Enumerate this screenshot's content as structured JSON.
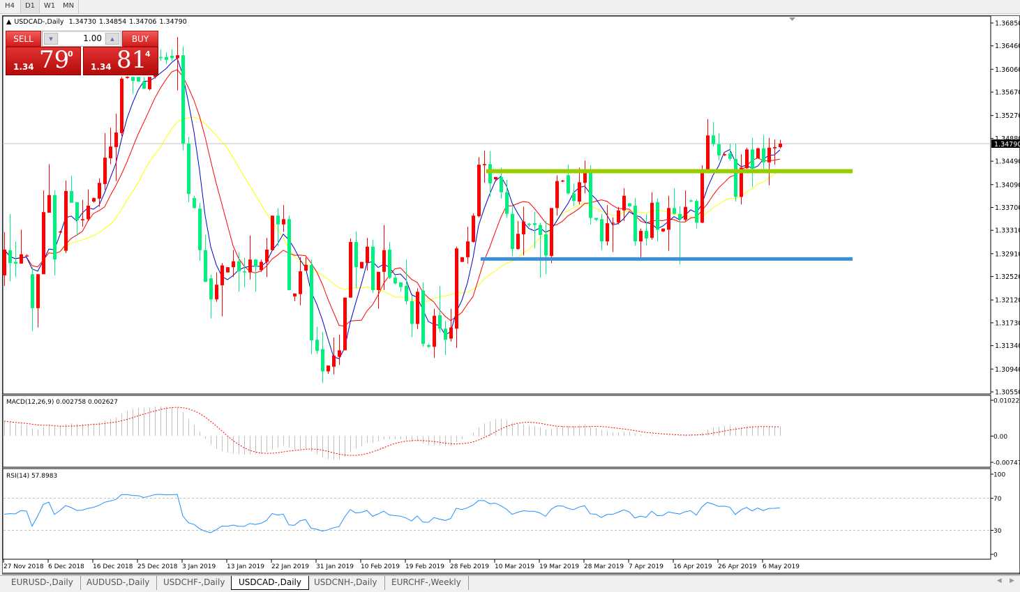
{
  "toolbar": {
    "timeframes": [
      "H4",
      "D1",
      "W1",
      "MN"
    ],
    "active": "D1"
  },
  "chart_header": {
    "symbol": "USDCAD-,Daily",
    "open": "1.34730",
    "high": "1.34854",
    "low": "1.34706",
    "close": "1.34790"
  },
  "trade_panel": {
    "sell_label": "SELL",
    "buy_label": "BUY",
    "lot": "1.00",
    "sell_price": {
      "big": "1.34",
      "main": "79",
      "sup": "0"
    },
    "buy_price": {
      "big": "1.34",
      "main": "81",
      "sup": "4"
    }
  },
  "colors": {
    "up": "#ff0000",
    "down": "#00f080",
    "ma_fast": "#0000cc",
    "ma_mid": "#ff0000",
    "ma_slow": "#ffff00",
    "support_line": "#3c8fd8",
    "resistance_line": "#99cc00",
    "macd_hist": "#c0c0c0",
    "macd_signal": "#ff0000",
    "rsi": "#1e90ff"
  },
  "chart_data": {
    "type": "candlestick",
    "symbol": "USDCAD-,Daily",
    "ylim": [
      1.3055,
      1.3685
    ],
    "price_ticks": [
      "1.36850",
      "1.36460",
      "1.36060",
      "1.35670",
      "1.35270",
      "1.34880",
      "1.34490",
      "1.34090",
      "1.33700",
      "1.33310",
      "1.32910",
      "1.32520",
      "1.32120",
      "1.31730",
      "1.31340",
      "1.30940",
      "1.30550"
    ],
    "current_price": "1.34790",
    "date_labels": [
      "27 Nov 2018",
      "6 Dec 2018",
      "16 Dec 2018",
      "25 Dec 2018",
      "3 Jan 2019",
      "13 Jan 2019",
      "22 Jan 2019",
      "31 Jan 2019",
      "10 Feb 2019",
      "19 Feb 2019",
      "28 Feb 2019",
      "10 Mar 2019",
      "19 Mar 2019",
      "28 Mar 2019",
      "7 Apr 2019",
      "16 Apr 2019",
      "26 Apr 2019",
      "6 May 2019"
    ],
    "horizontal_levels": [
      {
        "price": 1.3432,
        "color": "#99cc00"
      },
      {
        "price": 1.3282,
        "color": "#3c8fd8"
      }
    ],
    "candles_ohlc": [
      [
        1.3254,
        1.3328,
        1.3236,
        1.3298
      ],
      [
        1.3297,
        1.3359,
        1.3244,
        1.3275
      ],
      [
        1.3277,
        1.3312,
        1.3251,
        1.3274
      ],
      [
        1.3274,
        1.3332,
        1.3274,
        1.329
      ],
      [
        1.3288,
        1.329,
        1.3286,
        1.3288
      ],
      [
        1.3256,
        1.3268,
        1.3159,
        1.3198
      ],
      [
        1.3198,
        1.3256,
        1.3165,
        1.3256
      ],
      [
        1.3256,
        1.3399,
        1.3256,
        1.3362
      ],
      [
        1.3361,
        1.3444,
        1.3361,
        1.3391
      ],
      [
        1.3391,
        1.3399,
        1.3254,
        1.3281
      ],
      [
        1.3328,
        1.333,
        1.3325,
        1.3329
      ],
      [
        1.3296,
        1.3416,
        1.3292,
        1.3398
      ],
      [
        1.3398,
        1.3424,
        1.3378,
        1.3378
      ],
      [
        1.3379,
        1.3379,
        1.3322,
        1.3348
      ],
      [
        1.3348,
        1.3383,
        1.3337,
        1.335
      ],
      [
        1.335,
        1.3401,
        1.3347,
        1.3373
      ],
      [
        1.338,
        1.3387,
        1.3378,
        1.3386
      ],
      [
        1.3385,
        1.342,
        1.3371,
        1.3412
      ],
      [
        1.341,
        1.3497,
        1.34,
        1.3455
      ],
      [
        1.3454,
        1.3506,
        1.3444,
        1.3474
      ],
      [
        1.3473,
        1.353,
        1.3415,
        1.3498
      ],
      [
        1.3497,
        1.3593,
        1.3492,
        1.359
      ],
      [
        1.3591,
        1.3594,
        1.359,
        1.3593
      ],
      [
        1.3593,
        1.3593,
        1.3564,
        1.3586
      ],
      [
        1.3593,
        1.3593,
        1.3585,
        1.3585
      ],
      [
        1.3585,
        1.3593,
        1.3572,
        1.3573
      ],
      [
        1.3572,
        1.3593,
        1.357,
        1.3593
      ],
      [
        1.3593,
        1.3625,
        1.359,
        1.3622
      ],
      [
        1.3627,
        1.364,
        1.362,
        1.3625
      ],
      [
        1.3627,
        1.3635,
        1.3615,
        1.3622
      ],
      [
        1.3629,
        1.364,
        1.362,
        1.3625
      ],
      [
        1.3625,
        1.3661,
        1.357,
        1.363
      ],
      [
        1.363,
        1.3645,
        1.3468,
        1.3479
      ],
      [
        1.3479,
        1.349,
        1.3379,
        1.3393
      ],
      [
        1.3386,
        1.339,
        1.3368,
        1.3369
      ],
      [
        1.3368,
        1.3378,
        1.3279,
        1.3297
      ],
      [
        1.3297,
        1.3323,
        1.3242,
        1.3243
      ],
      [
        1.3249,
        1.3255,
        1.318,
        1.3213
      ],
      [
        1.3213,
        1.3259,
        1.3209,
        1.3238
      ],
      [
        1.3237,
        1.3275,
        1.3184,
        1.3271
      ],
      [
        1.3259,
        1.3268,
        1.3259,
        1.3268
      ],
      [
        1.3268,
        1.3297,
        1.3251,
        1.3278
      ],
      [
        1.3278,
        1.3294,
        1.3226,
        1.3261
      ],
      [
        1.3261,
        1.3284,
        1.3234,
        1.3259
      ],
      [
        1.3259,
        1.3322,
        1.3247,
        1.3281
      ],
      [
        1.3281,
        1.3282,
        1.3226,
        1.3269
      ],
      [
        1.3263,
        1.3281,
        1.326,
        1.3277
      ],
      [
        1.3277,
        1.3318,
        1.3251,
        1.3298
      ],
      [
        1.3297,
        1.3356,
        1.3297,
        1.3356
      ],
      [
        1.3356,
        1.3369,
        1.3304,
        1.3341
      ],
      [
        1.3341,
        1.3374,
        1.3328,
        1.335
      ],
      [
        1.335,
        1.3356,
        1.3228,
        1.3229
      ],
      [
        1.3218,
        1.3223,
        1.321,
        1.3223
      ],
      [
        1.3222,
        1.3285,
        1.3203,
        1.3261
      ],
      [
        1.3262,
        1.3285,
        1.3262,
        1.3272
      ],
      [
        1.3272,
        1.3281,
        1.3119,
        1.3143
      ],
      [
        1.3144,
        1.3166,
        1.312,
        1.3125
      ],
      [
        1.3128,
        1.3157,
        1.307,
        1.309
      ],
      [
        1.309,
        1.31,
        1.3086,
        1.31
      ],
      [
        1.3098,
        1.3148,
        1.3085,
        1.3117
      ],
      [
        1.3115,
        1.3153,
        1.3101,
        1.3126
      ],
      [
        1.3126,
        1.3216,
        1.3126,
        1.3216
      ],
      [
        1.3216,
        1.3317,
        1.3216,
        1.3311
      ],
      [
        1.3311,
        1.3329,
        1.3232,
        1.3268
      ],
      [
        1.3266,
        1.3277,
        1.3266,
        1.3277
      ],
      [
        1.3275,
        1.3318,
        1.3262,
        1.3303
      ],
      [
        1.3303,
        1.3315,
        1.3224,
        1.3229
      ],
      [
        1.3229,
        1.326,
        1.3197,
        1.326
      ],
      [
        1.326,
        1.334,
        1.3229,
        1.3297
      ],
      [
        1.3298,
        1.3311,
        1.3248,
        1.325
      ],
      [
        1.325,
        1.3254,
        1.3238,
        1.324
      ],
      [
        1.3242,
        1.3242,
        1.3226,
        1.3234
      ],
      [
        1.3236,
        1.3281,
        1.3204,
        1.321
      ],
      [
        1.321,
        1.322,
        1.3149,
        1.3171
      ],
      [
        1.3171,
        1.3232,
        1.3162,
        1.3226
      ],
      [
        1.3228,
        1.3242,
        1.3132,
        1.3137
      ],
      [
        1.3135,
        1.3137,
        1.313,
        1.3132
      ],
      [
        1.3132,
        1.3197,
        1.3113,
        1.3185
      ],
      [
        1.3186,
        1.3236,
        1.3156,
        1.3163
      ],
      [
        1.3163,
        1.3176,
        1.3118,
        1.3144
      ],
      [
        1.3146,
        1.3197,
        1.3141,
        1.3165
      ],
      [
        1.3163,
        1.3303,
        1.313,
        1.33
      ],
      [
        1.3277,
        1.3285,
        1.3277,
        1.3285
      ],
      [
        1.3285,
        1.3337,
        1.3274,
        1.3312
      ],
      [
        1.3311,
        1.336,
        1.331,
        1.3356
      ],
      [
        1.3355,
        1.3456,
        1.3353,
        1.3443
      ],
      [
        1.3442,
        1.3467,
        1.3412,
        1.3444
      ],
      [
        1.3444,
        1.3466,
        1.3388,
        1.3411
      ],
      [
        1.3418,
        1.3422,
        1.3416,
        1.3422
      ],
      [
        1.3422,
        1.3438,
        1.3385,
        1.3396
      ],
      [
        1.3396,
        1.3417,
        1.3352,
        1.3359
      ],
      [
        1.3359,
        1.3371,
        1.3287,
        1.3299
      ],
      [
        1.3299,
        1.3347,
        1.3298,
        1.3325
      ],
      [
        1.3324,
        1.3371,
        1.3288,
        1.3346
      ],
      [
        1.3342,
        1.3344,
        1.3337,
        1.3341
      ],
      [
        1.3343,
        1.3363,
        1.33,
        1.334
      ],
      [
        1.334,
        1.3344,
        1.325,
        1.3323
      ],
      [
        1.3324,
        1.3347,
        1.3256,
        1.3288
      ],
      [
        1.3287,
        1.3369,
        1.3275,
        1.3369
      ],
      [
        1.3369,
        1.3425,
        1.3356,
        1.3415
      ],
      [
        1.3415,
        1.3417,
        1.3413,
        1.3416
      ],
      [
        1.3425,
        1.3443,
        1.3392,
        1.3394
      ],
      [
        1.3394,
        1.3411,
        1.3372,
        1.3381
      ],
      [
        1.338,
        1.3438,
        1.3375,
        1.3413
      ],
      [
        1.3412,
        1.345,
        1.3394,
        1.3429
      ],
      [
        1.3429,
        1.3442,
        1.3341,
        1.3352
      ],
      [
        1.3352,
        1.3352,
        1.3347,
        1.3349
      ],
      [
        1.335,
        1.3359,
        1.3297,
        1.3312
      ],
      [
        1.3312,
        1.3374,
        1.3305,
        1.3343
      ],
      [
        1.3343,
        1.3353,
        1.3294,
        1.3344
      ],
      [
        1.3344,
        1.3371,
        1.3341,
        1.3365
      ],
      [
        1.3365,
        1.3403,
        1.3347,
        1.339
      ],
      [
        1.3377,
        1.3378,
        1.3371,
        1.3372
      ],
      [
        1.3373,
        1.3386,
        1.3304,
        1.3312
      ],
      [
        1.3312,
        1.3334,
        1.3285,
        1.333
      ],
      [
        1.333,
        1.3359,
        1.3305,
        1.3317
      ],
      [
        1.3318,
        1.3396,
        1.3315,
        1.3378
      ],
      [
        1.3379,
        1.3385,
        1.3312,
        1.3332
      ],
      [
        1.3329,
        1.3334,
        1.3328,
        1.3334
      ],
      [
        1.3332,
        1.339,
        1.3296,
        1.3369
      ],
      [
        1.3369,
        1.3403,
        1.3359,
        1.3359
      ],
      [
        1.3359,
        1.3372,
        1.3273,
        1.335
      ],
      [
        1.3349,
        1.3399,
        1.3347,
        1.3371
      ],
      [
        1.3382,
        1.3384,
        1.3379,
        1.3381
      ],
      [
        1.3381,
        1.3384,
        1.3334,
        1.3344
      ],
      [
        1.3344,
        1.3442,
        1.3343,
        1.3429
      ],
      [
        1.3429,
        1.3521,
        1.3429,
        1.3493
      ],
      [
        1.3493,
        1.3516,
        1.3474,
        1.3478
      ],
      [
        1.3478,
        1.3497,
        1.345,
        1.3459
      ],
      [
        1.3459,
        1.3462,
        1.3458,
        1.3461
      ],
      [
        1.3462,
        1.3479,
        1.345,
        1.3453
      ],
      [
        1.3453,
        1.3479,
        1.338,
        1.3388
      ],
      [
        1.3388,
        1.3461,
        1.3375,
        1.3438
      ],
      [
        1.3437,
        1.3472,
        1.3436,
        1.3469
      ],
      [
        1.3469,
        1.3489,
        1.3405,
        1.3436
      ],
      [
        1.3454,
        1.3472,
        1.3453,
        1.3471
      ],
      [
        1.3471,
        1.3494,
        1.3436,
        1.3447
      ],
      [
        1.3447,
        1.3489,
        1.3408,
        1.3472
      ],
      [
        1.3471,
        1.3486,
        1.3443,
        1.3473
      ],
      [
        1.3473,
        1.34854,
        1.34706,
        1.3479
      ]
    ],
    "macd": {
      "label": "MACD(12,26,9) 0.002758 0.002627",
      "ticks": [
        "0.010229",
        "0.00",
        "-0.007477"
      ],
      "ylim": [
        -0.007477,
        0.010229
      ]
    },
    "rsi": {
      "label": "RSI(14) 57.8983",
      "ticks": [
        "100",
        "70",
        "30",
        "0"
      ],
      "levels": [
        70,
        30
      ]
    }
  },
  "tabs": [
    "EURUSD-,Daily",
    "AUDUSD-,Daily",
    "USDCHF-,Daily",
    "USDCAD-,Daily",
    "USDCNH-,Daily",
    "EURCHF-,Weekly"
  ],
  "active_tab": "USDCAD-,Daily"
}
